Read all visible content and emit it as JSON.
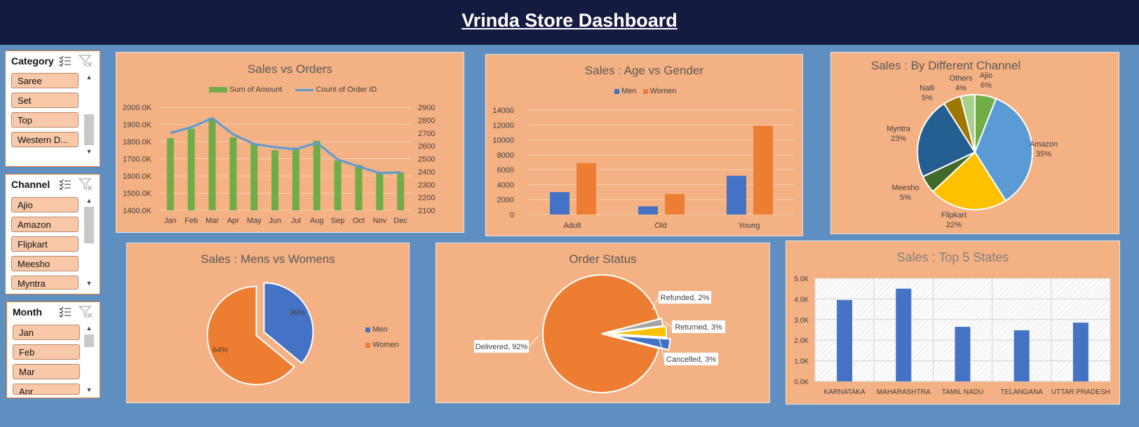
{
  "header": {
    "title": "Vrinda Store Dashboard"
  },
  "slicers": [
    {
      "title": "Category",
      "items": [
        "Saree",
        "Set",
        "Top",
        "Western D..."
      ]
    },
    {
      "title": "Channel",
      "items": [
        "Ajio",
        "Amazon",
        "Flipkart",
        "Meesho",
        "Myntra"
      ]
    },
    {
      "title": "Month",
      "items": [
        "Jan",
        "Feb",
        "Mar",
        "Apr"
      ]
    }
  ],
  "colors": {
    "header": "#141a40",
    "background": "#5f8ec0",
    "panel": "#f4b183",
    "green": "#70ad47",
    "blue": "#4472c4",
    "orange": "#ed7d31",
    "lightblue": "#5b9bd5"
  },
  "chart_data": [
    {
      "type": "bar",
      "title": "Sales vs Orders",
      "categories": [
        "Jan",
        "Feb",
        "Mar",
        "Apr",
        "May",
        "Jun",
        "Jul",
        "Aug",
        "Sep",
        "Oct",
        "Nov",
        "Dec"
      ],
      "series": [
        {
          "name": "Sum of Amount",
          "type": "bar",
          "axis": "left",
          "values": [
            1820,
            1875,
            1930,
            1825,
            1790,
            1750,
            1765,
            1805,
            1690,
            1665,
            1615,
            1620
          ]
        },
        {
          "name": "Count of Order ID",
          "type": "line",
          "axis": "right",
          "values": [
            2700,
            2745,
            2815,
            2690,
            2615,
            2590,
            2575,
            2625,
            2495,
            2440,
            2390,
            2395
          ]
        }
      ],
      "yticks_left": [
        "1400.0K",
        "1500.0K",
        "1600.0K",
        "1700.0K",
        "1800.0K",
        "1900.0K",
        "2000.0K"
      ],
      "ylim_left": [
        1400,
        2000
      ],
      "yticks_right": [
        "2100",
        "2200",
        "2300",
        "2400",
        "2500",
        "2600",
        "2700",
        "2800",
        "2900"
      ],
      "ylim_right": [
        2100,
        2900
      ],
      "grid": true,
      "legend": "top"
    },
    {
      "type": "bar",
      "title": "Sales : Age vs Gender",
      "categories": [
        "Adult",
        "Old",
        "Young"
      ],
      "series": [
        {
          "name": "Men",
          "values": [
            3000,
            1100,
            5200
          ]
        },
        {
          "name": "Women",
          "values": [
            6900,
            2750,
            11900
          ]
        }
      ],
      "yticks": [
        "0",
        "2000",
        "4000",
        "6000",
        "8000",
        "10000",
        "12000",
        "14000"
      ],
      "ylim": [
        0,
        14000
      ],
      "grid": true,
      "legend": "top"
    },
    {
      "type": "pie",
      "title": "Sales : By Different Channel",
      "slices": [
        {
          "label": "Ajio",
          "pct": "6%",
          "value": 6
        },
        {
          "label": "Amazon",
          "pct": "35%",
          "value": 35
        },
        {
          "label": "Flipkart",
          "pct": "22%",
          "value": 22
        },
        {
          "label": "Meesho",
          "pct": "5%",
          "value": 5
        },
        {
          "label": "Myntra",
          "pct": "23%",
          "value": 23
        },
        {
          "label": "Nalli",
          "pct": "5%",
          "value": 5
        },
        {
          "label": "Others",
          "pct": "4%",
          "value": 4
        }
      ]
    },
    {
      "type": "pie",
      "title": "Sales : Mens vs Womens",
      "slices": [
        {
          "label": "Men",
          "pct": "36%",
          "value": 36
        },
        {
          "label": "Women",
          "pct": "64%",
          "value": 64
        }
      ],
      "legend": "right"
    },
    {
      "type": "pie",
      "title": "Order Status",
      "slices": [
        {
          "label": "Delivered, 92%",
          "value": 92
        },
        {
          "label": "Refunded, 2%",
          "value": 2
        },
        {
          "label": "Returned, 3%",
          "value": 3
        },
        {
          "label": "Cancelled, 3%",
          "value": 3
        }
      ]
    },
    {
      "type": "bar",
      "title": "Sales :  Top 5 States",
      "categories": [
        "KARNATAKA",
        "MAHARASHTRA",
        "TAMIL NADU",
        "TELANGANA",
        "UTTAR PRADESH"
      ],
      "values": [
        3950,
        4500,
        2650,
        2480,
        2850
      ],
      "yticks": [
        "0.0K",
        "1.0K",
        "2.0K",
        "3.0K",
        "4.0K",
        "5.0K"
      ],
      "ylim": [
        0,
        5000
      ],
      "grid": true
    }
  ]
}
